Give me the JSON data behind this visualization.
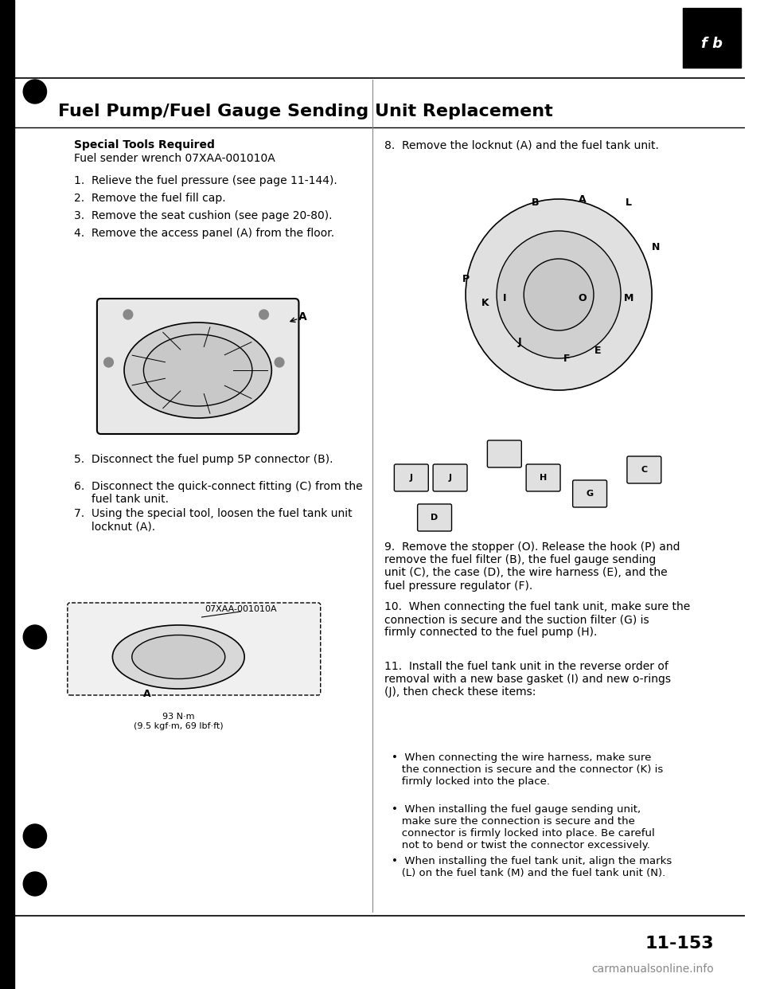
{
  "title": "Fuel Pump/Fuel Gauge Sending Unit Replacement",
  "bg_color": "#ffffff",
  "text_color": "#000000",
  "page_number": "11-153",
  "watermark": "carmanualsonline.info",
  "special_tools_header": "Special Tools Required",
  "special_tools_text": "Fuel sender wrench 07XAA-001010A",
  "steps_left": [
    "1.  Relieve the fuel pressure (see page 11-144).",
    "2.  Remove the fuel fill cap.",
    "3.  Remove the seat cushion (see page 20-80).",
    "4.  Remove the access panel (A) from the floor.",
    "5.  Disconnect the fuel pump 5P connector (B).",
    "6.  Disconnect the quick-connect fitting (C) from the\n     fuel tank unit.",
    "7.  Using the special tool, loosen the fuel tank unit\n     locknut (A)."
  ],
  "steps_right": [
    "8.  Remove the locknut (A) and the fuel tank unit.",
    "9.  Remove the stopper (O). Release the hook (P) and\nremove the fuel filter (B), the fuel gauge sending\nunit (C), the case (D), the wire harness (E), and the\nfuel pressure regulator (F).",
    "10.  When connecting the fuel tank unit, make sure the\nconnection is secure and the suction filter (G) is\nfirmly connected to the fuel pump (H).",
    "11.  Install the fuel tank unit in the reverse order of\nremoval with a new base gasket (I) and new o-rings\n(J), then check these items:"
  ],
  "bullet_points": [
    "•  When connecting the wire harness, make sure\n   the connection is secure and the connector (K) is\n   firmly locked into the place.",
    "•  When installing the fuel gauge sending unit,\n   make sure the connection is secure and the\n   connector is firmly locked into place. Be careful\n   not to bend or twist the connector excessively.",
    "•  When installing the fuel tank unit, align the marks\n   (L) on the fuel tank (M) and the fuel tank unit (N)."
  ],
  "torque_label": "07XAA-001010A",
  "torque_value": "93 N·m\n(9.5 kgf·m, 69 lbf·ft)"
}
